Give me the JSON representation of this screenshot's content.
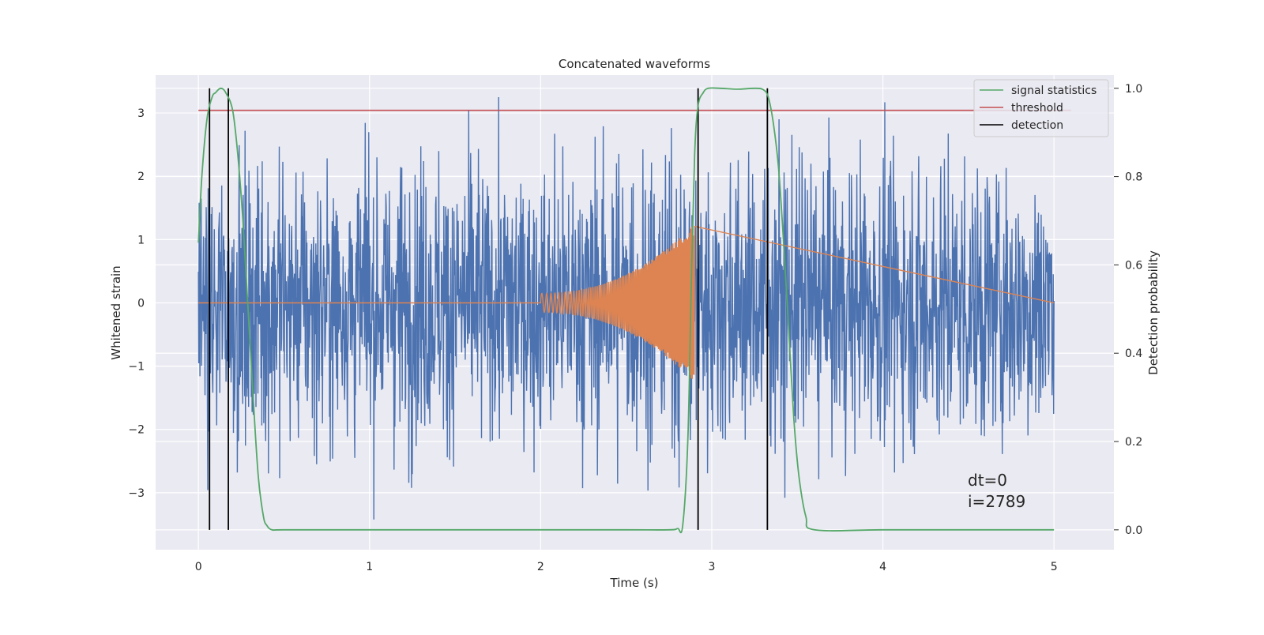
{
  "chart_data": {
    "type": "line",
    "title": "Concatenated waveforms",
    "xlabel": "Time (s)",
    "ylabel": "Whitened strain",
    "ylabel_right": "Detection probability",
    "xlim": [
      -0.25,
      5.35
    ],
    "ylim": [
      -3.9,
      3.6
    ],
    "ylim_right": [
      -0.045,
      1.03
    ],
    "x_ticks": [
      0,
      1,
      2,
      3,
      4,
      5
    ],
    "y_ticks": [
      -3,
      -2,
      -1,
      0,
      1,
      2,
      3
    ],
    "y_ticks_right": [
      0.0,
      0.2,
      0.4,
      0.6,
      0.8,
      1.0
    ],
    "grid": true,
    "legend_position": "top-right",
    "colors": {
      "strain": "#4c72b0",
      "injected_waveform": "#dd8452",
      "signal_statistics": "#55a868",
      "threshold": "#c44e52",
      "detection": "#000000",
      "plot_background": "#eaeaf2",
      "grid": "#ffffff"
    },
    "series": [
      {
        "name": "signal statistics",
        "axis": "right",
        "x": [
          0.0,
          0.02,
          0.05,
          0.08,
          0.1,
          0.13,
          0.16,
          0.2,
          0.23,
          0.26,
          0.29,
          0.32,
          0.35,
          0.38,
          0.4,
          0.43,
          0.5,
          1.0,
          1.5,
          2.0,
          2.5,
          2.75,
          2.8,
          2.83,
          2.86,
          2.88,
          2.9,
          2.92,
          2.95,
          2.98,
          3.05,
          3.15,
          3.25,
          3.3,
          3.33,
          3.36,
          3.39,
          3.42,
          3.45,
          3.48,
          3.51,
          3.55,
          3.6,
          4.0,
          4.5,
          5.0
        ],
        "y": [
          0.65,
          0.8,
          0.93,
          0.98,
          0.99,
          1.0,
          0.99,
          0.95,
          0.85,
          0.7,
          0.5,
          0.3,
          0.12,
          0.03,
          0.01,
          0.0,
          0.0,
          0.0,
          0.0,
          0.0,
          0.0,
          0.0,
          0.003,
          0.01,
          0.2,
          0.55,
          0.85,
          0.96,
          0.99,
          1.0,
          1.0,
          0.998,
          1.0,
          0.997,
          0.98,
          0.92,
          0.82,
          0.65,
          0.45,
          0.25,
          0.12,
          0.03,
          0.0,
          0.0,
          0.0,
          0.0
        ]
      },
      {
        "name": "threshold",
        "axis": "right",
        "x": [
          0.0,
          5.1
        ],
        "y": [
          0.95,
          0.95
        ]
      }
    ],
    "detection": {
      "name": "detection",
      "x": [
        0.065,
        0.175,
        2.92,
        3.325
      ],
      "y_range": [
        0.0,
        1.0
      ]
    },
    "strain": {
      "x_range": [
        0.0,
        5.0
      ],
      "approx_typical_amplitude": 1.1,
      "y_extent": [
        -3.6,
        3.25
      ]
    },
    "injected_waveform": {
      "x_range": [
        2.0,
        2.9
      ],
      "amplitude_start": 0.15,
      "amplitude_end": 1.25
    },
    "annotations": [
      "dt=0",
      "i=2789"
    ]
  }
}
